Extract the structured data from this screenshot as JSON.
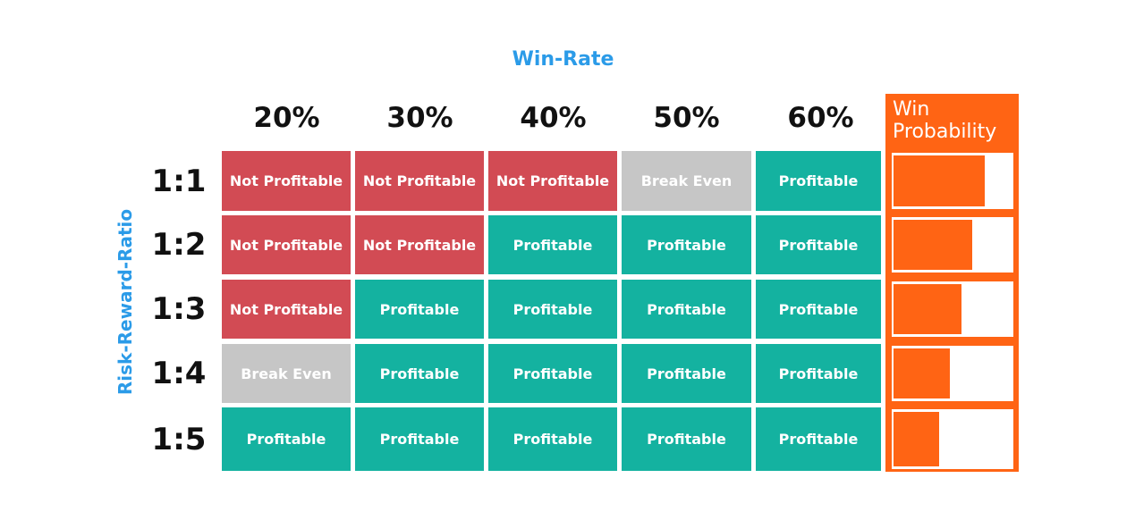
{
  "title": "Win-Rate",
  "row_axis_label": "Risk-Reward-Ratio",
  "columns": [
    "20%",
    "30%",
    "40%",
    "50%",
    "60%"
  ],
  "rows": [
    "1:1",
    "1:2",
    "1:3",
    "1:4",
    "1:5"
  ],
  "cells": [
    [
      "Not Profitable",
      "Not Profitable",
      "Not Profitable",
      "Break Even",
      "Profitable"
    ],
    [
      "Not Profitable",
      "Not Profitable",
      "Profitable",
      "Profitable",
      "Profitable"
    ],
    [
      "Not Profitable",
      "Profitable",
      "Profitable",
      "Profitable",
      "Profitable"
    ],
    [
      "Break Even",
      "Profitable",
      "Profitable",
      "Profitable",
      "Profitable"
    ],
    [
      "Profitable",
      "Profitable",
      "Profitable",
      "Profitable",
      "Profitable"
    ]
  ],
  "cell_colors": {
    "Not Profitable": "#d24b54",
    "Break Even": "#c6c6c6",
    "Profitable": "#14b2a0"
  },
  "win_probability": {
    "label": "Win Probability",
    "color": "#ff6414",
    "values": [
      0.76,
      0.66,
      0.57,
      0.47,
      0.38
    ]
  }
}
